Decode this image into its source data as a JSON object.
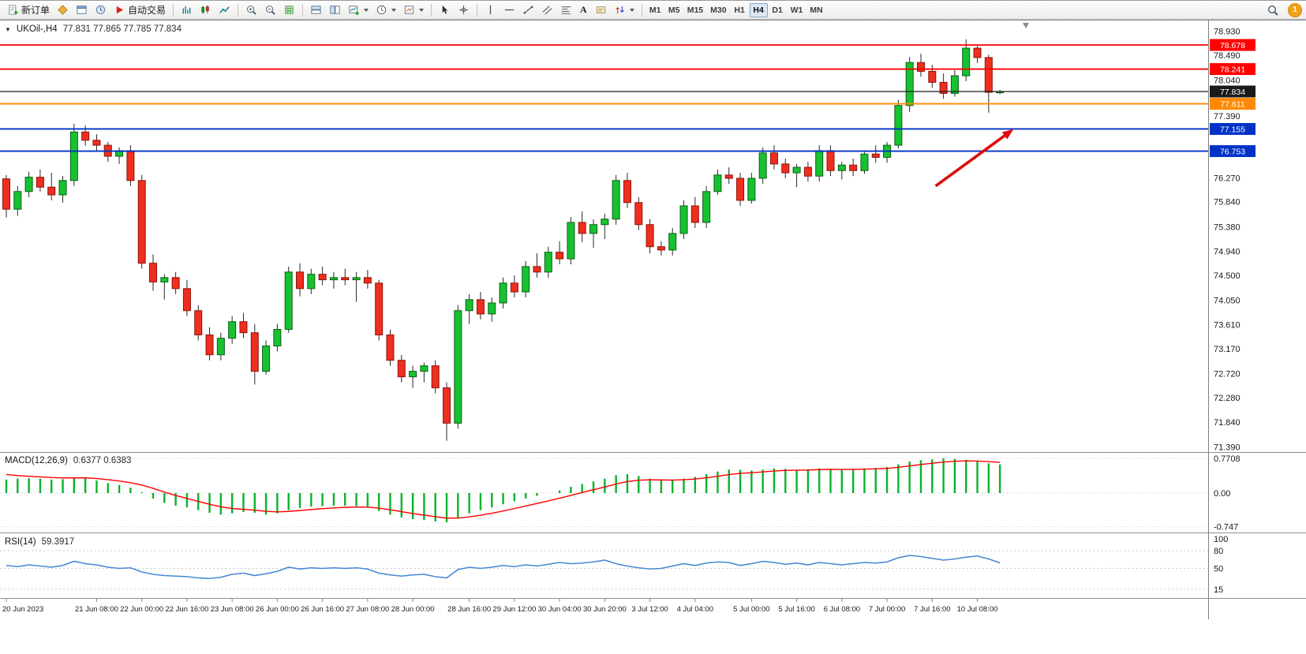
{
  "icons": {
    "collapse": "▼"
  },
  "toolbar": {
    "new_order": "新订单",
    "autotrading": "自动交易",
    "text_tool": "A",
    "timeframes": [
      "M1",
      "M5",
      "M15",
      "M30",
      "H1",
      "H4",
      "D1",
      "W1",
      "MN"
    ],
    "active_timeframe": "H4",
    "notification_count": "1"
  },
  "chart_data": {
    "type": "candlestick",
    "title": "UKOil-,H4",
    "symbol_header": "UKOil-,H4",
    "ohlc_text": "77.831 77.865 77.785 77.834",
    "ylim": [
      71.3,
      79.05
    ],
    "price_ticks": [
      "78.930",
      "78.490",
      "78.040",
      "77.390",
      "76.270",
      "75.840",
      "75.380",
      "74.940",
      "74.500",
      "74.050",
      "73.610",
      "73.170",
      "72.720",
      "72.280",
      "71.840",
      "71.390"
    ],
    "levels": [
      {
        "name": "resistance-line-1",
        "label": "78.678",
        "price": 78.678,
        "color": "#ff0000"
      },
      {
        "name": "resistance-line-2",
        "label": "78.241",
        "price": 78.241,
        "color": "#ff0000"
      },
      {
        "name": "current-price-line",
        "label": "77.834",
        "price": 77.834,
        "color": "#1a1a1a"
      },
      {
        "name": "support-line-orange",
        "label": "77.611",
        "price": 77.611,
        "color": "#ff8a00"
      },
      {
        "name": "support-line-blue-1",
        "label": "77.155",
        "price": 77.155,
        "color": "#0032c8"
      },
      {
        "name": "support-line-blue-2",
        "label": "76.753",
        "price": 76.753,
        "color": "#0032c8"
      }
    ],
    "arrow": {
      "color": "#e00b0b",
      "from": [
        82.3,
        76.12
      ],
      "to": [
        89.2,
        77.15
      ]
    },
    "time_labels": [
      [
        0,
        "20 Jun 2023"
      ],
      [
        8,
        "21 Jun 08:00"
      ],
      [
        12,
        "22 Jun 00:00"
      ],
      [
        16,
        "22 Jun 16:00"
      ],
      [
        20,
        "23 Jun 08:00"
      ],
      [
        24,
        "26 Jun 00:00"
      ],
      [
        28,
        "26 Jun 16:00"
      ],
      [
        32,
        "27 Jun 08:00"
      ],
      [
        36,
        "28 Jun 00:00"
      ],
      [
        41,
        "28 Jun 16:00"
      ],
      [
        45,
        "29 Jun 12:00"
      ],
      [
        49,
        "30 Jun 04:00"
      ],
      [
        53,
        "30 Jun 20:00"
      ],
      [
        57,
        "3 Jul 12:00"
      ],
      [
        61,
        "4 Jul 04:00"
      ],
      [
        66,
        "5 Jul 00:00"
      ],
      [
        70,
        "5 Jul 16:00"
      ],
      [
        74,
        "6 Jul 08:00"
      ],
      [
        78,
        "7 Jul 00:00"
      ],
      [
        82,
        "7 Jul 16:00"
      ],
      [
        86,
        "10 Jul 08:00"
      ]
    ],
    "candles": [
      [
        76.25,
        76.32,
        75.55,
        75.7
      ],
      [
        75.7,
        76.12,
        75.58,
        76.02
      ],
      [
        76.02,
        76.38,
        75.92,
        76.28
      ],
      [
        76.28,
        76.42,
        76.02,
        76.1
      ],
      [
        76.1,
        76.36,
        75.86,
        75.96
      ],
      [
        75.96,
        76.3,
        75.82,
        76.22
      ],
      [
        76.22,
        77.25,
        76.12,
        77.1
      ],
      [
        77.1,
        77.22,
        76.85,
        76.95
      ],
      [
        76.95,
        77.06,
        76.76,
        76.86
      ],
      [
        76.86,
        76.92,
        76.56,
        76.66
      ],
      [
        76.66,
        76.82,
        76.52,
        76.76
      ],
      [
        76.76,
        76.86,
        76.12,
        76.22
      ],
      [
        76.22,
        76.32,
        74.62,
        74.72
      ],
      [
        74.72,
        74.88,
        74.22,
        74.38
      ],
      [
        74.38,
        74.52,
        74.06,
        74.46
      ],
      [
        74.46,
        74.56,
        74.16,
        74.26
      ],
      [
        74.26,
        74.42,
        73.76,
        73.86
      ],
      [
        73.86,
        73.96,
        73.32,
        73.42
      ],
      [
        73.42,
        73.56,
        72.96,
        73.06
      ],
      [
        73.06,
        73.46,
        72.96,
        73.36
      ],
      [
        73.36,
        73.76,
        73.26,
        73.66
      ],
      [
        73.66,
        73.82,
        73.36,
        73.46
      ],
      [
        73.46,
        73.62,
        72.52,
        72.76
      ],
      [
        72.76,
        73.32,
        72.7,
        73.22
      ],
      [
        73.22,
        73.62,
        73.12,
        73.52
      ],
      [
        73.52,
        74.66,
        73.46,
        74.56
      ],
      [
        74.56,
        74.72,
        74.12,
        74.26
      ],
      [
        74.26,
        74.62,
        74.16,
        74.52
      ],
      [
        74.52,
        74.66,
        74.32,
        74.42
      ],
      [
        74.42,
        74.56,
        74.26,
        74.46
      ],
      [
        74.46,
        74.62,
        74.32,
        74.42
      ],
      [
        74.42,
        74.56,
        74.02,
        74.46
      ],
      [
        74.46,
        74.6,
        74.26,
        74.36
      ],
      [
        74.36,
        74.42,
        73.32,
        73.42
      ],
      [
        73.42,
        73.52,
        72.86,
        72.96
      ],
      [
        72.96,
        73.06,
        72.56,
        72.66
      ],
      [
        72.66,
        72.86,
        72.46,
        72.76
      ],
      [
        72.76,
        72.92,
        72.56,
        72.86
      ],
      [
        72.86,
        72.96,
        72.36,
        72.46
      ],
      [
        72.46,
        72.56,
        71.5,
        71.82
      ],
      [
        71.82,
        73.96,
        71.72,
        73.86
      ],
      [
        73.86,
        74.16,
        73.62,
        74.06
      ],
      [
        74.06,
        74.2,
        73.7,
        73.8
      ],
      [
        73.8,
        74.1,
        73.66,
        74.0
      ],
      [
        74.0,
        74.46,
        73.9,
        74.36
      ],
      [
        74.36,
        74.5,
        74.1,
        74.2
      ],
      [
        74.2,
        74.76,
        74.1,
        74.66
      ],
      [
        74.66,
        74.9,
        74.46,
        74.56
      ],
      [
        74.56,
        75.02,
        74.46,
        74.92
      ],
      [
        74.92,
        75.12,
        74.7,
        74.8
      ],
      [
        74.8,
        75.56,
        74.7,
        75.46
      ],
      [
        75.46,
        75.66,
        75.1,
        75.26
      ],
      [
        75.26,
        75.52,
        75.0,
        75.42
      ],
      [
        75.42,
        75.62,
        75.16,
        75.52
      ],
      [
        75.52,
        76.32,
        75.42,
        76.22
      ],
      [
        76.22,
        76.36,
        75.72,
        75.82
      ],
      [
        75.82,
        75.92,
        75.32,
        75.42
      ],
      [
        75.42,
        75.52,
        74.9,
        75.02
      ],
      [
        75.02,
        75.12,
        74.86,
        74.96
      ],
      [
        74.96,
        75.36,
        74.86,
        75.26
      ],
      [
        75.26,
        75.86,
        75.16,
        75.76
      ],
      [
        75.76,
        75.92,
        75.36,
        75.46
      ],
      [
        75.46,
        76.12,
        75.36,
        76.02
      ],
      [
        76.02,
        76.42,
        75.96,
        76.32
      ],
      [
        76.32,
        76.46,
        76.16,
        76.26
      ],
      [
        76.26,
        76.36,
        75.76,
        75.86
      ],
      [
        75.86,
        76.36,
        75.8,
        76.26
      ],
      [
        76.26,
        76.82,
        76.16,
        76.72
      ],
      [
        76.72,
        76.86,
        76.42,
        76.52
      ],
      [
        76.52,
        76.62,
        76.26,
        76.36
      ],
      [
        76.36,
        76.52,
        76.1,
        76.46
      ],
      [
        76.46,
        76.56,
        76.2,
        76.3
      ],
      [
        76.3,
        76.86,
        76.2,
        76.76
      ],
      [
        76.76,
        76.86,
        76.3,
        76.4
      ],
      [
        76.4,
        76.56,
        76.24,
        76.5
      ],
      [
        76.5,
        76.62,
        76.3,
        76.4
      ],
      [
        76.4,
        76.76,
        76.34,
        76.7
      ],
      [
        76.7,
        76.86,
        76.54,
        76.64
      ],
      [
        76.64,
        76.92,
        76.54,
        76.86
      ],
      [
        76.86,
        77.68,
        76.8,
        77.58
      ],
      [
        77.58,
        78.46,
        77.46,
        78.36
      ],
      [
        78.36,
        78.52,
        78.1,
        78.2
      ],
      [
        78.2,
        78.32,
        77.9,
        78.0
      ],
      [
        78.0,
        78.16,
        77.7,
        77.8
      ],
      [
        77.8,
        78.22,
        77.74,
        78.12
      ],
      [
        78.12,
        78.78,
        78.02,
        78.62
      ],
      [
        78.62,
        78.66,
        78.35,
        78.45
      ],
      [
        78.45,
        78.5,
        77.45,
        77.82
      ],
      [
        77.831,
        77.865,
        77.785,
        77.834
      ]
    ],
    "macd": {
      "header": "MACD(12,26,9)",
      "values": "0.6377 0.6383",
      "scale": [
        [
          "0.7708",
          0.7708
        ],
        [
          "0.00",
          0
        ],
        [
          "-0.747",
          -0.747
        ]
      ],
      "histogram": [
        0.3,
        0.32,
        0.33,
        0.32,
        0.3,
        0.31,
        0.35,
        0.33,
        0.28,
        0.22,
        0.18,
        0.12,
        0.02,
        -0.12,
        -0.22,
        -0.28,
        -0.32,
        -0.38,
        -0.44,
        -0.48,
        -0.45,
        -0.42,
        -0.44,
        -0.48,
        -0.45,
        -0.38,
        -0.33,
        -0.3,
        -0.29,
        -0.28,
        -0.28,
        -0.29,
        -0.32,
        -0.4,
        -0.48,
        -0.54,
        -0.58,
        -0.6,
        -0.63,
        -0.65,
        -0.55,
        -0.45,
        -0.38,
        -0.32,
        -0.25,
        -0.18,
        -0.12,
        -0.06,
        0.0,
        0.06,
        0.14,
        0.2,
        0.26,
        0.32,
        0.4,
        0.42,
        0.38,
        0.32,
        0.28,
        0.28,
        0.32,
        0.36,
        0.42,
        0.48,
        0.52,
        0.52,
        0.5,
        0.52,
        0.55,
        0.54,
        0.52,
        0.53,
        0.55,
        0.54,
        0.52,
        0.53,
        0.55,
        0.56,
        0.58,
        0.64,
        0.7,
        0.73,
        0.75,
        0.77,
        0.76,
        0.74,
        0.7,
        0.66,
        0.638
      ]
    },
    "rsi": {
      "header": "RSI(14)",
      "value": "59.3917",
      "scale": [
        [
          "100",
          100
        ],
        [
          "80",
          80
        ],
        [
          "50",
          50
        ],
        [
          "15",
          15
        ]
      ],
      "values": [
        55,
        53,
        56,
        54,
        52,
        55,
        62,
        58,
        56,
        52,
        50,
        51,
        44,
        40,
        38,
        37,
        36,
        34,
        33,
        35,
        40,
        42,
        38,
        41,
        45,
        52,
        49,
        51,
        50,
        51,
        50,
        51,
        49,
        42,
        39,
        37,
        39,
        40,
        36,
        34,
        48,
        52,
        50,
        52,
        55,
        53,
        56,
        54,
        57,
        60,
        58,
        59,
        61,
        64,
        58,
        54,
        51,
        49,
        50,
        54,
        58,
        55,
        59,
        61,
        60,
        55,
        58,
        62,
        60,
        57,
        59,
        56,
        60,
        58,
        56,
        58,
        60,
        59,
        61,
        68,
        72,
        70,
        67,
        64,
        66,
        69,
        71,
        66,
        59.39
      ]
    }
  }
}
